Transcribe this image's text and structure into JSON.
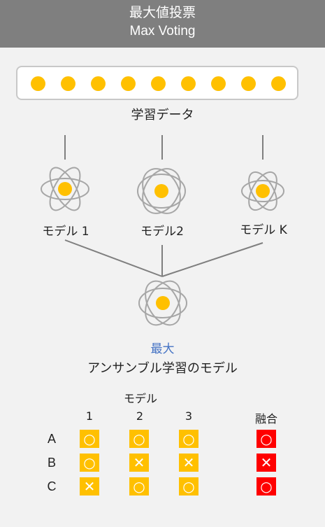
{
  "header": {
    "title_ja": "最大値投票",
    "title_en": "Max Voting"
  },
  "training_data": {
    "label": "学習データ",
    "point_count": 9
  },
  "models": [
    {
      "label": "モデル 1"
    },
    {
      "label": "モデル2"
    },
    {
      "label": "モデル K"
    }
  ],
  "ensemble": {
    "method_label": "最大",
    "caption": "アンサンブル学習のモデル"
  },
  "table": {
    "header_label": "モデル",
    "model_columns": [
      "1",
      "2",
      "3"
    ],
    "fusion_column": "融合",
    "rows": [
      {
        "label": "A",
        "votes": [
          "O",
          "O",
          "O"
        ],
        "fusion": "O"
      },
      {
        "label": "B",
        "votes": [
          "O",
          "X",
          "X"
        ],
        "fusion": "X"
      },
      {
        "label": "C",
        "votes": [
          "X",
          "O",
          "O"
        ],
        "fusion": "O"
      }
    ]
  },
  "symbols": {
    "O": "○",
    "X": "✕"
  },
  "colors": {
    "header_bg": "#7f7f7f",
    "accent": "#ffc000",
    "fusion": "#ff0000",
    "method_label": "#4472c4",
    "line": "#7f7f7f"
  }
}
